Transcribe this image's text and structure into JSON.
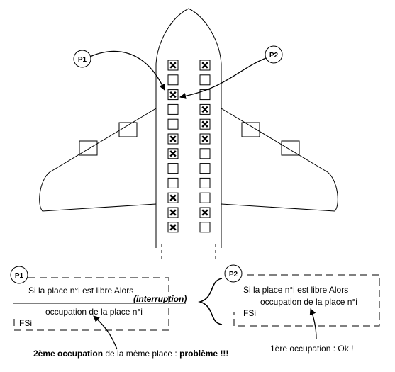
{
  "process_labels": {
    "p1": "P1",
    "p2": "P2"
  },
  "seats": {
    "left": [
      true,
      false,
      true,
      false,
      false,
      true,
      true,
      false,
      false,
      true,
      true,
      true
    ],
    "right": [
      true,
      false,
      false,
      true,
      true,
      true,
      false,
      false,
      false,
      false,
      true,
      false
    ]
  },
  "p1_code": {
    "line1": "Si  la place n°i est libre  Alors",
    "interruption": "(interruption)",
    "line2": "occupation de la place n°i",
    "line3": "FSi"
  },
  "p2_code": {
    "line1": "Si  la place n°i est libre  Alors",
    "line2": "occupation de la place n°i",
    "line3": "FSi"
  },
  "annotations": {
    "problem_bold": "2ème occupation",
    "problem_mid": " de la même place  :  ",
    "problem_end": "problème !!!",
    "ok": "1ère occupation : Ok !"
  }
}
